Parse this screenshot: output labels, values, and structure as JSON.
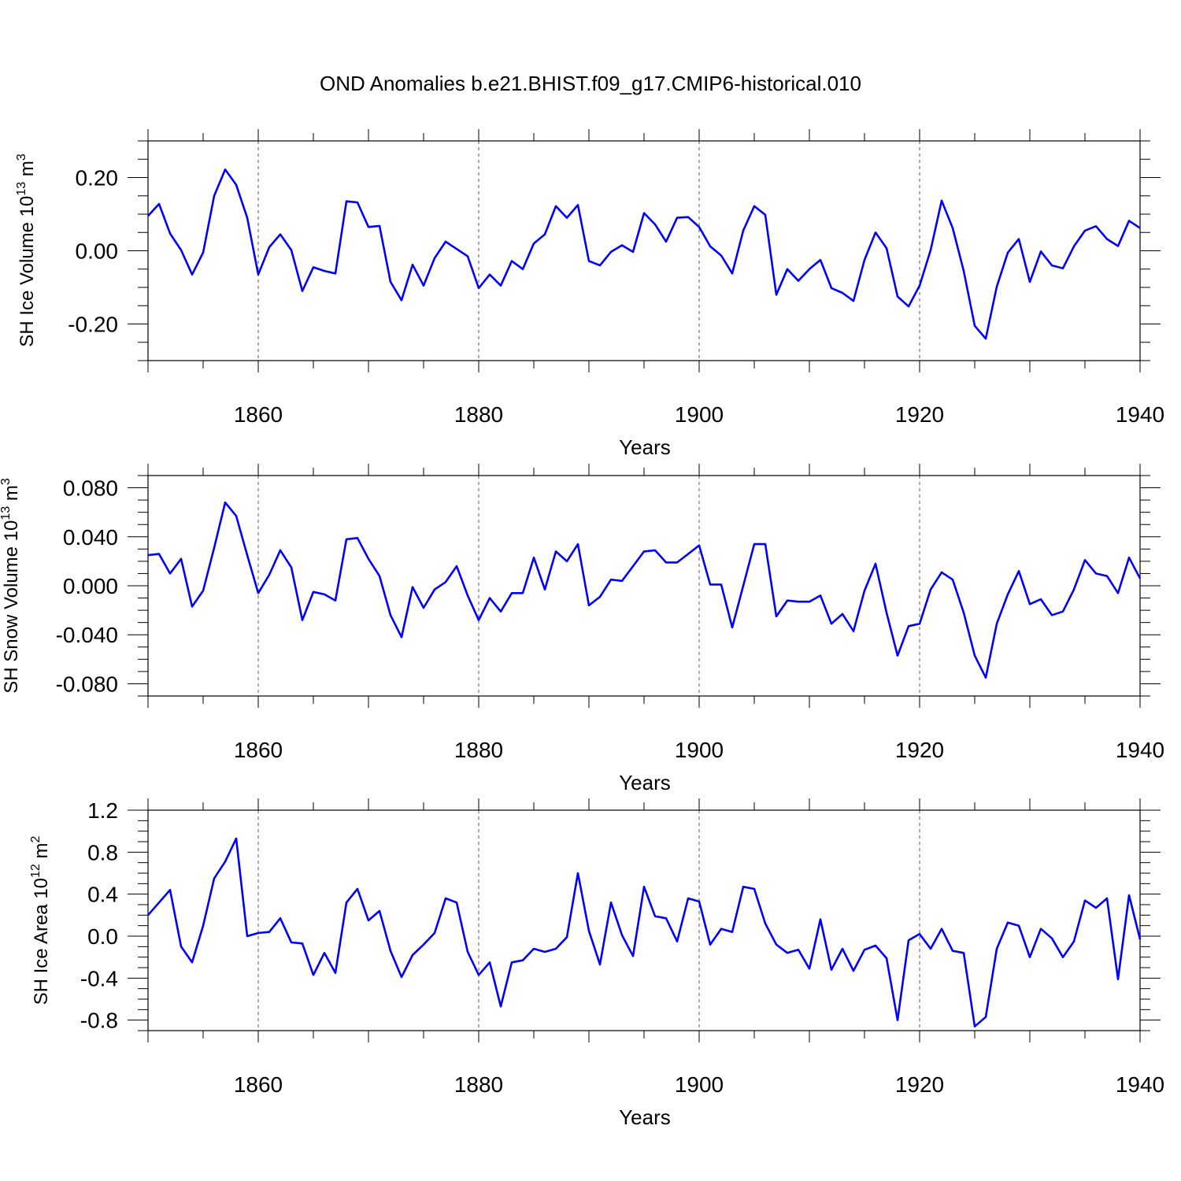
{
  "title": "OND Anomalies b.e21.BHIST.f09_g17.CMIP6-historical.010",
  "line_color": "#0000ff",
  "chart_data": [
    {
      "type": "line",
      "title": "OND Anomalies b.e21.BHIST.f09_g17.CMIP6-historical.010",
      "xlabel": "Years",
      "ylabel_main": "SH Ice Volume 10",
      "ylabel_sup": "13",
      "ylabel_unit": " m",
      "ylabel_unit_sup": "3",
      "xlim": [
        1850,
        1940
      ],
      "ylim": [
        -0.3,
        0.3
      ],
      "xticks": [
        1860,
        1880,
        1900,
        1920,
        1940
      ],
      "xtick_labels": [
        "1860",
        "1880",
        "1900",
        "1920",
        "1940"
      ],
      "yticks": [
        -0.2,
        0.0,
        0.2
      ],
      "ytick_labels": [
        "-0.20",
        "0.00",
        "0.20"
      ],
      "yminor_step": 0.05,
      "x": [
        1850,
        1851,
        1852,
        1853,
        1854,
        1855,
        1856,
        1857,
        1858,
        1859,
        1860,
        1861,
        1862,
        1863,
        1864,
        1865,
        1866,
        1867,
        1868,
        1869,
        1870,
        1871,
        1872,
        1873,
        1874,
        1875,
        1876,
        1877,
        1878,
        1879,
        1880,
        1881,
        1882,
        1883,
        1884,
        1885,
        1886,
        1887,
        1888,
        1889,
        1890,
        1891,
        1892,
        1893,
        1894,
        1895,
        1896,
        1897,
        1898,
        1899,
        1900,
        1901,
        1902,
        1903,
        1904,
        1905,
        1906,
        1907,
        1908,
        1909,
        1910,
        1911,
        1912,
        1913,
        1914,
        1915,
        1916,
        1917,
        1918,
        1919,
        1920,
        1921,
        1922,
        1923,
        1924,
        1925,
        1926,
        1927,
        1928,
        1929,
        1930,
        1931,
        1932,
        1933,
        1934,
        1935,
        1936,
        1937,
        1938,
        1939,
        1940
      ],
      "series": [
        {
          "name": "SH Ice Volume",
          "values": [
            0.095,
            0.128,
            0.047,
            0.002,
            -0.065,
            -0.005,
            0.15,
            0.222,
            0.18,
            0.09,
            -0.065,
            0.01,
            0.045,
            0.002,
            -0.11,
            -0.045,
            -0.055,
            -0.062,
            0.135,
            0.132,
            0.065,
            0.068,
            -0.085,
            -0.135,
            -0.038,
            -0.095,
            -0.02,
            0.025,
            0.005,
            -0.015,
            -0.102,
            -0.065,
            -0.095,
            -0.028,
            -0.05,
            0.02,
            0.045,
            0.122,
            0.09,
            0.125,
            -0.028,
            -0.04,
            -0.003,
            0.015,
            -0.003,
            0.103,
            0.072,
            0.025,
            0.09,
            0.092,
            0.065,
            0.012,
            -0.013,
            -0.062,
            0.055,
            0.122,
            0.098,
            -0.12,
            -0.05,
            -0.082,
            -0.05,
            -0.025,
            -0.102,
            -0.115,
            -0.137,
            -0.025,
            0.05,
            0.007,
            -0.125,
            -0.152,
            -0.095,
            0.002,
            0.137,
            0.062,
            -0.055,
            -0.205,
            -0.24,
            -0.098,
            -0.005,
            0.032,
            -0.085,
            -0.002,
            -0.04,
            -0.048,
            0.012,
            0.055,
            0.067,
            0.032,
            0.013,
            0.082,
            0.062
          ]
        }
      ]
    },
    {
      "type": "line",
      "xlabel": "Years",
      "ylabel_main": "SH Snow Volume 10",
      "ylabel_sup": "13",
      "ylabel_unit": " m",
      "ylabel_unit_sup": "3",
      "xlim": [
        1850,
        1940
      ],
      "ylim": [
        -0.09,
        0.09
      ],
      "xticks": [
        1860,
        1880,
        1900,
        1920,
        1940
      ],
      "xtick_labels": [
        "1860",
        "1880",
        "1900",
        "1920",
        "1940"
      ],
      "yticks": [
        -0.08,
        -0.04,
        0.0,
        0.04,
        0.08
      ],
      "ytick_labels": [
        "-0.080",
        "-0.040",
        "0.000",
        "0.040",
        "0.080"
      ],
      "yminor_step": 0.01,
      "x": [
        1850,
        1851,
        1852,
        1853,
        1854,
        1855,
        1856,
        1857,
        1858,
        1859,
        1860,
        1861,
        1862,
        1863,
        1864,
        1865,
        1866,
        1867,
        1868,
        1869,
        1870,
        1871,
        1872,
        1873,
        1874,
        1875,
        1876,
        1877,
        1878,
        1879,
        1880,
        1881,
        1882,
        1883,
        1884,
        1885,
        1886,
        1887,
        1888,
        1889,
        1890,
        1891,
        1892,
        1893,
        1894,
        1895,
        1896,
        1897,
        1898,
        1899,
        1900,
        1901,
        1902,
        1903,
        1904,
        1905,
        1906,
        1907,
        1908,
        1909,
        1910,
        1911,
        1912,
        1913,
        1914,
        1915,
        1916,
        1917,
        1918,
        1919,
        1920,
        1921,
        1922,
        1923,
        1924,
        1925,
        1926,
        1927,
        1928,
        1929,
        1930,
        1931,
        1932,
        1933,
        1934,
        1935,
        1936,
        1937,
        1938,
        1939,
        1940
      ],
      "series": [
        {
          "name": "SH Snow Volume",
          "values": [
            0.025,
            0.026,
            0.01,
            0.022,
            -0.017,
            -0.004,
            0.031,
            0.068,
            0.057,
            0.025,
            -0.006,
            0.009,
            0.029,
            0.015,
            -0.028,
            -0.005,
            -0.007,
            -0.012,
            0.038,
            0.039,
            0.022,
            0.008,
            -0.024,
            -0.042,
            -0.001,
            -0.018,
            -0.003,
            0.003,
            0.016,
            -0.008,
            -0.028,
            -0.01,
            -0.021,
            -0.006,
            -0.006,
            0.023,
            -0.003,
            0.028,
            0.02,
            0.034,
            -0.016,
            -0.009,
            0.005,
            0.004,
            0.016,
            0.028,
            0.029,
            0.019,
            0.019,
            0.026,
            0.033,
            0.001,
            0.001,
            -0.034,
            0.0,
            0.034,
            0.034,
            -0.025,
            -0.012,
            -0.013,
            -0.013,
            -0.008,
            -0.031,
            -0.023,
            -0.037,
            -0.004,
            0.018,
            -0.022,
            -0.057,
            -0.033,
            -0.031,
            -0.003,
            0.011,
            0.005,
            -0.022,
            -0.057,
            -0.075,
            -0.031,
            -0.007,
            0.012,
            -0.015,
            -0.011,
            -0.024,
            -0.021,
            -0.003,
            0.021,
            0.01,
            0.008,
            -0.006,
            0.023,
            0.006
          ]
        }
      ]
    },
    {
      "type": "line",
      "xlabel": "Years",
      "ylabel_main": "SH Ice Area 10",
      "ylabel_sup": "12",
      "ylabel_unit": " m",
      "ylabel_unit_sup": "2",
      "xlim": [
        1850,
        1940
      ],
      "ylim": [
        -0.9,
        1.2
      ],
      "xticks": [
        1860,
        1880,
        1900,
        1920,
        1940
      ],
      "xtick_labels": [
        "1860",
        "1880",
        "1900",
        "1920",
        "1940"
      ],
      "yticks": [
        -0.8,
        -0.4,
        0.0,
        0.4,
        0.8,
        1.2
      ],
      "ytick_labels": [
        "-0.8",
        "-0.4",
        "0.0",
        "0.4",
        "0.8",
        "1.2"
      ],
      "yminor_step": 0.1,
      "x": [
        1850,
        1851,
        1852,
        1853,
        1854,
        1855,
        1856,
        1857,
        1858,
        1859,
        1860,
        1861,
        1862,
        1863,
        1864,
        1865,
        1866,
        1867,
        1868,
        1869,
        1870,
        1871,
        1872,
        1873,
        1874,
        1875,
        1876,
        1877,
        1878,
        1879,
        1880,
        1881,
        1882,
        1883,
        1884,
        1885,
        1886,
        1887,
        1888,
        1889,
        1890,
        1891,
        1892,
        1893,
        1894,
        1895,
        1896,
        1897,
        1898,
        1899,
        1900,
        1901,
        1902,
        1903,
        1904,
        1905,
        1906,
        1907,
        1908,
        1909,
        1910,
        1911,
        1912,
        1913,
        1914,
        1915,
        1916,
        1917,
        1918,
        1919,
        1920,
        1921,
        1922,
        1923,
        1924,
        1925,
        1926,
        1927,
        1928,
        1929,
        1930,
        1931,
        1932,
        1933,
        1934,
        1935,
        1936,
        1937,
        1938,
        1939,
        1940
      ],
      "series": [
        {
          "name": "SH Ice Area",
          "values": [
            0.2,
            0.32,
            0.44,
            -0.1,
            -0.25,
            0.1,
            0.55,
            0.71,
            0.93,
            0.0,
            0.03,
            0.04,
            0.17,
            -0.06,
            -0.07,
            -0.37,
            -0.16,
            -0.35,
            0.32,
            0.45,
            0.15,
            0.24,
            -0.14,
            -0.39,
            -0.18,
            -0.08,
            0.03,
            0.36,
            0.32,
            -0.15,
            -0.37,
            -0.25,
            -0.67,
            -0.25,
            -0.23,
            -0.12,
            -0.15,
            -0.12,
            -0.01,
            0.6,
            0.05,
            -0.27,
            0.32,
            0.01,
            -0.19,
            0.47,
            0.19,
            0.17,
            -0.05,
            0.36,
            0.33,
            -0.08,
            0.07,
            0.04,
            0.47,
            0.45,
            0.12,
            -0.08,
            -0.16,
            -0.13,
            -0.31,
            0.16,
            -0.32,
            -0.12,
            -0.33,
            -0.13,
            -0.09,
            -0.21,
            -0.8,
            -0.04,
            0.02,
            -0.12,
            0.07,
            -0.14,
            -0.16,
            -0.86,
            -0.77,
            -0.12,
            0.13,
            0.1,
            -0.2,
            0.07,
            -0.02,
            -0.2,
            -0.05,
            0.34,
            0.27,
            0.36,
            -0.41,
            0.39,
            -0.03
          ]
        }
      ]
    }
  ]
}
